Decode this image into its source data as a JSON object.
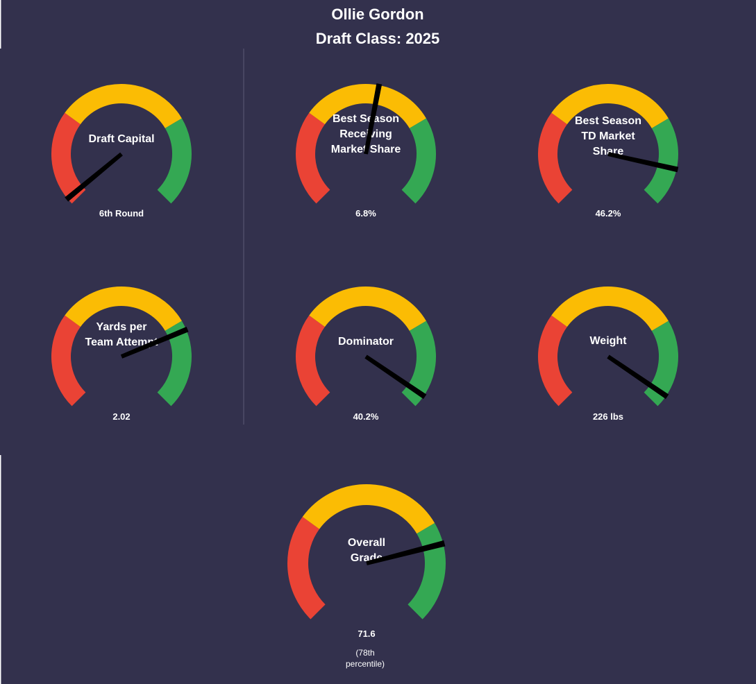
{
  "title": {
    "line1": "Ollie Gordon",
    "line2": "Draft Class: 2025"
  },
  "colors": {
    "background": "#33314d",
    "bad": "#ea4335",
    "mid": "#fbbc04",
    "good": "#34a853",
    "needle": "#000000",
    "text": "#ffffff"
  },
  "chart_data": [
    {
      "type": "gauge",
      "label": [
        "Draft Capital"
      ],
      "value_text": "6th Round",
      "needle_fraction": 0.02
    },
    {
      "type": "gauge",
      "label": [
        "Best Season",
        "Receiving",
        "Market Share"
      ],
      "value_text": "6.8%",
      "needle_fraction": 0.54
    },
    {
      "type": "gauge",
      "label": [
        "Best Season",
        "TD Market",
        "Share"
      ],
      "value_text": "46.2%",
      "needle_fraction": 0.88
    },
    {
      "type": "gauge",
      "label": [
        "Yards per",
        "Team Attempt"
      ],
      "value_text": "2.02",
      "needle_fraction": 0.75
    },
    {
      "type": "gauge",
      "label": [
        "Dominator"
      ],
      "value_text": "40.2%",
      "needle_fraction": 0.96
    },
    {
      "type": "gauge",
      "label": [
        "Weight"
      ],
      "value_text": "226 lbs",
      "needle_fraction": 0.96
    },
    {
      "type": "gauge",
      "label": [
        "Overall",
        "Grade"
      ],
      "value_text": "71.6",
      "sub_text": [
        "(78th",
        "percentile)"
      ],
      "needle_fraction": 0.78
    }
  ]
}
